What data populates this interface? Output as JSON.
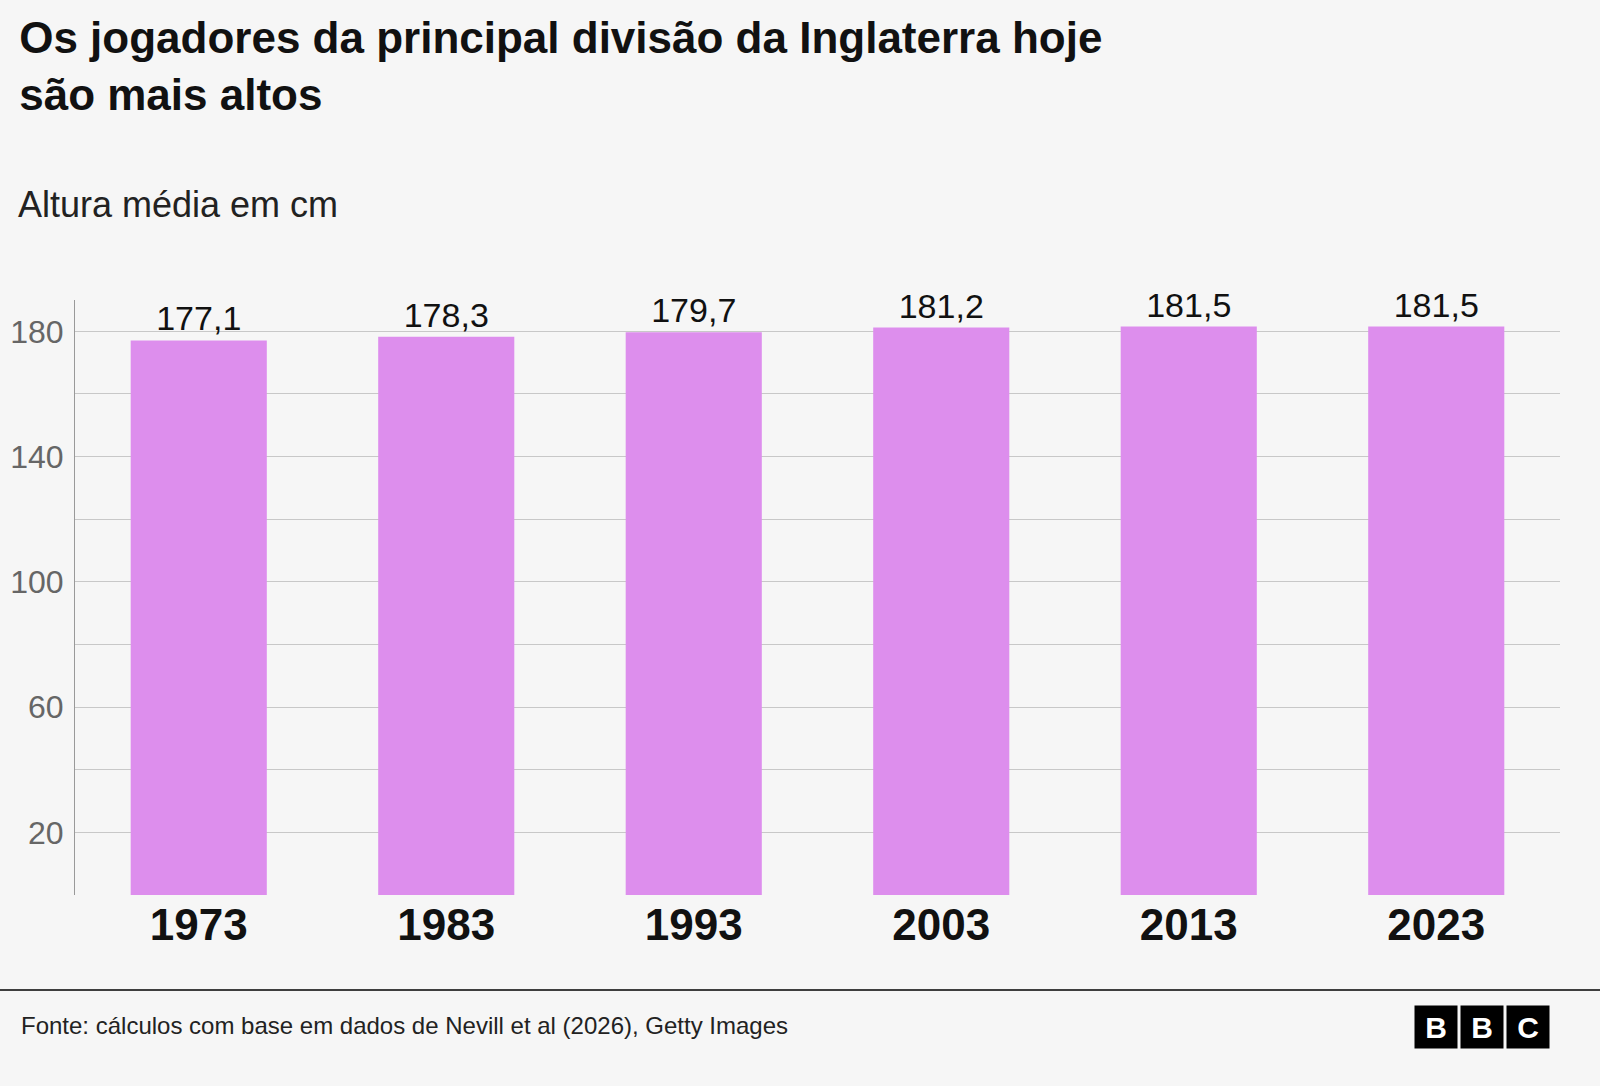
{
  "chart_data": {
    "type": "bar",
    "title": "Os jogadores da principal divisão da Inglaterra hoje são mais altos",
    "subtitle": "Altura média em cm",
    "categories": [
      "1973",
      "1983",
      "1993",
      "2003",
      "2013",
      "2023"
    ],
    "values": [
      177.1,
      178.3,
      179.7,
      181.2,
      181.5,
      181.5
    ],
    "value_labels": [
      "177,1",
      "178,3",
      "179,7",
      "181,2",
      "181,5",
      "181,5"
    ],
    "color": "#dd8eed",
    "ylim": [
      0,
      190
    ],
    "yticks": [
      20,
      60,
      100,
      140,
      180
    ],
    "grid": true,
    "data_labels": true,
    "source": "Fonte: cálculos com base em dados de Nevill et al (2026), Getty Images",
    "logo": "BBC"
  }
}
